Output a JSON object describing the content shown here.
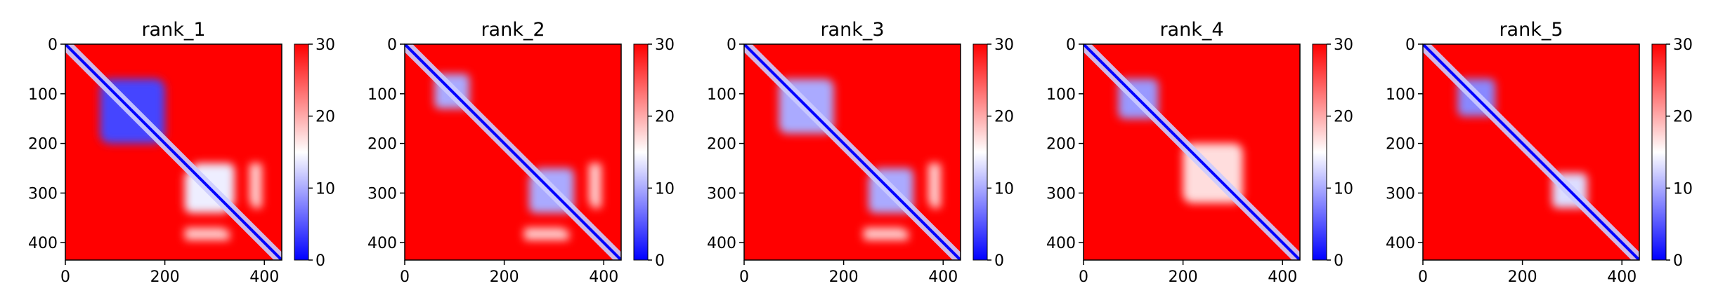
{
  "chart_data": [
    {
      "type": "heatmap",
      "title": "rank_1",
      "x_ticks": [
        "0",
        "200",
        "400"
      ],
      "y_ticks": [
        "0",
        "100",
        "200",
        "300",
        "400"
      ],
      "xlim": [
        0,
        435
      ],
      "ylim": [
        435,
        0
      ],
      "colorbar": {
        "min": 0,
        "max": 30,
        "ticks": [
          "0",
          "10",
          "20",
          "30"
        ],
        "colormap": "bwr"
      },
      "blocks": [
        {
          "x_range": [
            70,
            200
          ],
          "y_range": [
            70,
            200
          ],
          "value": 4
        },
        {
          "x_range": [
            240,
            330
          ],
          "y_range": [
            255,
            340
          ],
          "value": 14
        },
        {
          "x_range": [
            370,
            395
          ],
          "y_range": [
            240,
            320
          ],
          "value": 18
        },
        {
          "x_range": [
            250,
            330
          ],
          "y_range": [
            375,
            395
          ],
          "value": 18
        }
      ]
    },
    {
      "type": "heatmap",
      "title": "rank_2",
      "x_ticks": [
        "0",
        "200",
        "400"
      ],
      "y_ticks": [
        "0",
        "100",
        "200",
        "300",
        "400"
      ],
      "xlim": [
        0,
        435
      ],
      "ylim": [
        435,
        0
      ],
      "colorbar": {
        "min": 0,
        "max": 30,
        "ticks": [
          "0",
          "10",
          "20",
          "30"
        ],
        "colormap": "bwr"
      },
      "blocks": [
        {
          "x_range": [
            60,
            130
          ],
          "y_range": [
            60,
            130
          ],
          "value": 10
        },
        {
          "x_range": [
            250,
            340
          ],
          "y_range": [
            260,
            340
          ],
          "value": 10
        },
        {
          "x_range": [
            370,
            395
          ],
          "y_range": [
            240,
            320
          ],
          "value": 18
        },
        {
          "x_range": [
            250,
            330
          ],
          "y_range": [
            375,
            395
          ],
          "value": 18
        }
      ]
    },
    {
      "type": "heatmap",
      "title": "rank_3",
      "x_ticks": [
        "0",
        "200",
        "400"
      ],
      "y_ticks": [
        "0",
        "100",
        "200",
        "300",
        "400"
      ],
      "xlim": [
        0,
        435
      ],
      "ylim": [
        435,
        0
      ],
      "colorbar": {
        "min": 0,
        "max": 30,
        "ticks": [
          "0",
          "10",
          "20",
          "30"
        ],
        "colormap": "bwr"
      },
      "blocks": [
        {
          "x_range": [
            70,
            180
          ],
          "y_range": [
            70,
            180
          ],
          "value": 10
        },
        {
          "x_range": [
            250,
            340
          ],
          "y_range": [
            260,
            340
          ],
          "value": 10
        },
        {
          "x_range": [
            370,
            395
          ],
          "y_range": [
            240,
            320
          ],
          "value": 18
        },
        {
          "x_range": [
            250,
            330
          ],
          "y_range": [
            375,
            395
          ],
          "value": 18
        }
      ]
    },
    {
      "type": "heatmap",
      "title": "rank_4",
      "x_ticks": [
        "0",
        "200",
        "400"
      ],
      "y_ticks": [
        "0",
        "100",
        "200",
        "300",
        "400"
      ],
      "xlim": [
        0,
        435
      ],
      "ylim": [
        435,
        0
      ],
      "colorbar": {
        "min": 0,
        "max": 30,
        "ticks": [
          "0",
          "10",
          "20",
          "30"
        ],
        "colormap": "bwr"
      },
      "blocks": [
        {
          "x_range": [
            70,
            150
          ],
          "y_range": [
            70,
            150
          ],
          "value": 9
        },
        {
          "x_range": [
            200,
            320
          ],
          "y_range": [
            200,
            320
          ],
          "value": 17
        }
      ]
    },
    {
      "type": "heatmap",
      "title": "rank_5",
      "x_ticks": [
        "0",
        "200",
        "400"
      ],
      "y_ticks": [
        "0",
        "100",
        "200",
        "300",
        "400"
      ],
      "xlim": [
        0,
        435
      ],
      "ylim": [
        435,
        0
      ],
      "colorbar": {
        "min": 0,
        "max": 30,
        "ticks": [
          "0",
          "10",
          "20",
          "30"
        ],
        "colormap": "bwr"
      },
      "blocks": [
        {
          "x_range": [
            70,
            145
          ],
          "y_range": [
            70,
            145
          ],
          "value": 8
        },
        {
          "x_range": [
            260,
            330
          ],
          "y_range": [
            260,
            330
          ],
          "value": 13
        }
      ]
    }
  ]
}
